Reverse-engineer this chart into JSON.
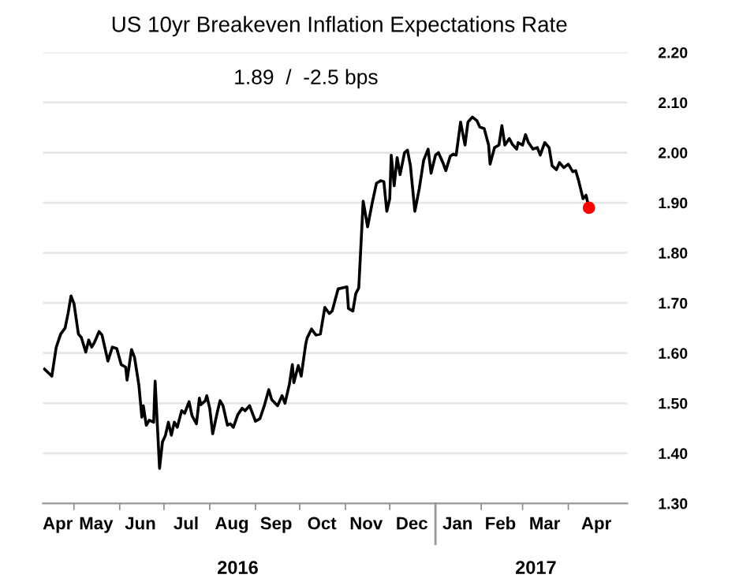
{
  "chart_data": {
    "type": "line",
    "title": "US 10yr Breakeven Inflation Expectations Rate",
    "subtitle": "1.89  /  -2.5 bps",
    "series": [
      {
        "marker": "none",
        "color": "#000000",
        "x": [
          "2016-04-11",
          "2016-04-16",
          "2016-04-19",
          "2016-04-22",
          "2016-04-25",
          "2016-04-27",
          "2016-04-29",
          "2016-05-01",
          "2016-05-04",
          "2016-05-06",
          "2016-05-09",
          "2016-05-11",
          "2016-05-13",
          "2016-05-15",
          "2016-05-18",
          "2016-05-20",
          "2016-05-24",
          "2016-05-27",
          "2016-05-30",
          "2016-06-02",
          "2016-06-05",
          "2016-06-06",
          "2016-06-09",
          "2016-06-11",
          "2016-06-14",
          "2016-06-16",
          "2016-06-17",
          "2016-06-19",
          "2016-06-21",
          "2016-06-24",
          "2016-06-25",
          "2016-06-28",
          "2016-06-30",
          "2016-07-02",
          "2016-07-04",
          "2016-07-06",
          "2016-07-08",
          "2016-07-10",
          "2016-07-13",
          "2016-07-15",
          "2016-07-18",
          "2016-07-20",
          "2016-07-23",
          "2016-07-25",
          "2016-07-26",
          "2016-07-29",
          "2016-07-30",
          "2016-08-01",
          "2016-08-03",
          "2016-08-06",
          "2016-08-08",
          "2016-08-10",
          "2016-08-13",
          "2016-08-15",
          "2016-08-17",
          "2016-08-20",
          "2016-08-23",
          "2016-08-25",
          "2016-08-28",
          "2016-09-01",
          "2016-09-04",
          "2016-09-07",
          "2016-09-10",
          "2016-09-12",
          "2016-09-16",
          "2016-09-19",
          "2016-09-21",
          "2016-09-24",
          "2016-09-26",
          "2016-09-27",
          "2016-09-30",
          "2016-10-02",
          "2016-10-05",
          "2016-10-06",
          "2016-10-09",
          "2016-10-12",
          "2016-10-15",
          "2016-10-18",
          "2016-10-21",
          "2016-10-23",
          "2016-10-27",
          "2016-10-30",
          "2016-11-02",
          "2016-11-03",
          "2016-11-06",
          "2016-11-08",
          "2016-11-10",
          "2016-11-13",
          "2016-11-16",
          "2016-11-19",
          "2016-11-22",
          "2016-11-25",
          "2016-11-27",
          "2016-11-29",
          "2016-12-01",
          "2016-12-02",
          "2016-12-04",
          "2016-12-06",
          "2016-12-08",
          "2016-12-11",
          "2016-12-13",
          "2016-12-15",
          "2016-12-18",
          "2016-12-21",
          "2016-12-24",
          "2016-12-27",
          "2016-12-29",
          "2017-01-01",
          "2017-01-03",
          "2017-01-06",
          "2017-01-08",
          "2017-01-11",
          "2017-01-13",
          "2017-01-15",
          "2017-01-18",
          "2017-01-21",
          "2017-01-23",
          "2017-01-26",
          "2017-01-29",
          "2017-01-31",
          "2017-02-03",
          "2017-02-06",
          "2017-02-07",
          "2017-02-10",
          "2017-02-13",
          "2017-02-15",
          "2017-02-17",
          "2017-02-20",
          "2017-02-22",
          "2017-02-25",
          "2017-02-26",
          "2017-03-01",
          "2017-03-03",
          "2017-03-05",
          "2017-03-08",
          "2017-03-11",
          "2017-03-13",
          "2017-03-16",
          "2017-03-19",
          "2017-03-21",
          "2017-03-24",
          "2017-03-26",
          "2017-03-29",
          "2017-04-01",
          "2017-04-04",
          "2017-04-06",
          "2017-04-08",
          "2017-04-11",
          "2017-04-13",
          "2017-04-15"
        ],
        "values": [
          1.568,
          1.554,
          1.612,
          1.638,
          1.65,
          1.679,
          1.714,
          1.699,
          1.638,
          1.631,
          1.602,
          1.626,
          1.612,
          1.622,
          1.643,
          1.636,
          1.584,
          1.612,
          1.609,
          1.577,
          1.572,
          1.546,
          1.607,
          1.592,
          1.536,
          1.472,
          1.495,
          1.456,
          1.466,
          1.462,
          1.544,
          1.37,
          1.423,
          1.436,
          1.462,
          1.436,
          1.462,
          1.452,
          1.485,
          1.48,
          1.503,
          1.475,
          1.459,
          1.51,
          1.497,
          1.505,
          1.515,
          1.49,
          1.439,
          1.48,
          1.505,
          1.495,
          1.456,
          1.459,
          1.452,
          1.477,
          1.49,
          1.485,
          1.495,
          1.464,
          1.469,
          1.495,
          1.527,
          1.507,
          1.495,
          1.515,
          1.5,
          1.538,
          1.577,
          1.541,
          1.575,
          1.554,
          1.617,
          1.63,
          1.648,
          1.636,
          1.638,
          1.691,
          1.679,
          1.684,
          1.728,
          1.73,
          1.732,
          1.689,
          1.684,
          1.719,
          1.73,
          1.903,
          1.852,
          1.898,
          1.939,
          1.944,
          1.942,
          1.883,
          1.908,
          1.995,
          1.934,
          1.99,
          1.956,
          2.0,
          2.005,
          1.974,
          1.883,
          1.928,
          1.985,
          2.007,
          1.959,
          1.995,
          2.0,
          1.98,
          1.964,
          1.993,
          1.997,
          1.995,
          2.061,
          2.015,
          2.061,
          2.071,
          2.064,
          2.051,
          2.048,
          2.015,
          1.977,
          2.01,
          2.015,
          2.054,
          2.015,
          2.028,
          2.017,
          2.007,
          2.02,
          2.015,
          2.036,
          2.02,
          2.007,
          2.01,
          1.995,
          2.02,
          2.01,
          1.974,
          1.966,
          1.98,
          1.97,
          1.977,
          1.962,
          1.964,
          1.944,
          1.908,
          1.915,
          1.89
        ]
      },
      {
        "type": "scatter",
        "marker": "circle",
        "color": "#ff0000",
        "x": [
          "2017-04-15"
        ],
        "values": [
          1.89
        ]
      }
    ],
    "xlim": [
      "2016-04-10",
      "2017-05-11"
    ],
    "xticks": [
      {
        "value": "2016-04-20",
        "label": "Apr"
      },
      {
        "value": "2016-05-16",
        "label": "May"
      },
      {
        "value": "2016-06-15",
        "label": "Jun"
      },
      {
        "value": "2016-07-16",
        "label": "Jul"
      },
      {
        "value": "2016-08-16",
        "label": "Aug"
      },
      {
        "value": "2016-09-15",
        "label": "Sep"
      },
      {
        "value": "2016-10-16",
        "label": "Oct"
      },
      {
        "value": "2016-11-15",
        "label": "Nov"
      },
      {
        "value": "2016-12-16",
        "label": "Dec"
      },
      {
        "value": "2017-01-16",
        "label": "Jan"
      },
      {
        "value": "2017-02-14",
        "label": "Feb"
      },
      {
        "value": "2017-03-16",
        "label": "Mar"
      },
      {
        "value": "2017-04-20",
        "label": "Apr"
      },
      {
        "value": "2016-05-01",
        "label": null
      },
      {
        "value": "2016-06-01",
        "label": null
      },
      {
        "value": "2016-07-01",
        "label": null
      },
      {
        "value": "2016-08-01",
        "label": null
      },
      {
        "value": "2016-09-01",
        "label": null
      },
      {
        "value": "2016-10-01",
        "label": null
      },
      {
        "value": "2016-11-01",
        "label": null
      },
      {
        "value": "2016-12-01",
        "label": null
      },
      {
        "value": "2017-01-01",
        "label": null
      },
      {
        "value": "2017-02-01",
        "label": null
      },
      {
        "value": "2017-03-01",
        "label": null
      },
      {
        "value": "2017-04-01",
        "label": null
      }
    ],
    "x2lim": [
      "2016-04-10",
      "2017-05-11"
    ],
    "x2ticks": [
      {
        "value": "2016-08-20",
        "label": "2016"
      },
      {
        "value": "2017-03-10",
        "label": "2017"
      }
    ],
    "ylim": [
      1.3,
      2.2
    ],
    "yticks": [
      {
        "value": 1.3,
        "label": "1.30"
      },
      {
        "value": 1.4,
        "label": "1.40"
      },
      {
        "value": 1.5,
        "label": "1.50"
      },
      {
        "value": 1.6,
        "label": "1.60"
      },
      {
        "value": 1.7,
        "label": "1.70"
      },
      {
        "value": 1.8,
        "label": "1.80"
      },
      {
        "value": 1.9,
        "label": "1.90"
      },
      {
        "value": 2.0,
        "label": "2.00"
      },
      {
        "value": 2.1,
        "label": "2.10"
      },
      {
        "value": 2.2,
        "label": "2.20"
      }
    ],
    "grid": "y",
    "legend": false,
    "line_style": "solid"
  }
}
